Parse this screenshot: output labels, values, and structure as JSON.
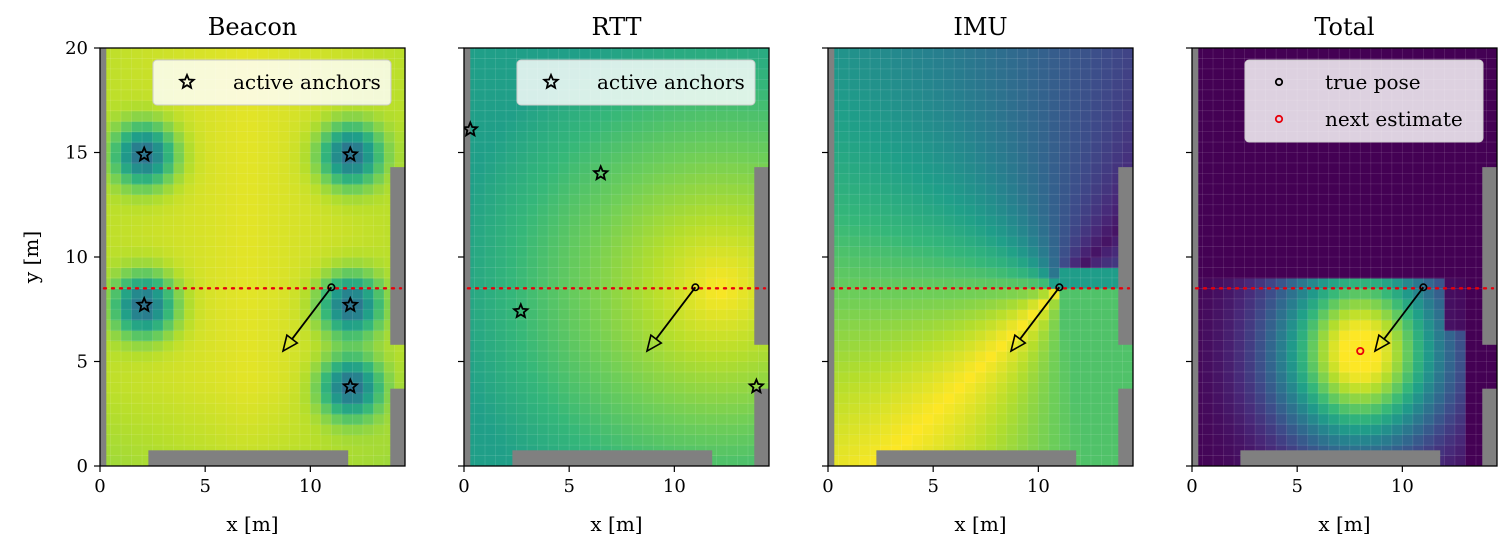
{
  "chart_data": {
    "type": "heatmap",
    "colormap": "viridis",
    "xlim": [
      0,
      14.5
    ],
    "ylim": [
      0,
      20
    ],
    "xticks": [
      "0",
      "5",
      "10"
    ],
    "yticks": [
      "0",
      "5",
      "10",
      "15",
      "20"
    ],
    "xlabel": "x [m]",
    "ylabel": "y [m]",
    "grid": true,
    "legend_placement": "upper right",
    "true_pose": {
      "x": 11.0,
      "y": 8.55
    },
    "heading_arrow_tip": {
      "x": 8.7,
      "y": 5.5
    },
    "next_estimate": {
      "x": 8.0,
      "y": 5.5
    },
    "corridor_line_y": 8.5,
    "walls": [
      {
        "x0": 0.0,
        "x1": 0.3,
        "y0": 0.0,
        "y1": 20.0
      },
      {
        "x0": 2.3,
        "x1": 11.8,
        "y0": 0.0,
        "y1": 0.75
      },
      {
        "x0": 13.8,
        "x1": 14.5,
        "y0": 5.8,
        "y1": 14.3
      },
      {
        "x0": 13.8,
        "x1": 14.5,
        "y0": 0.0,
        "y1": 3.7
      }
    ],
    "panels": [
      {
        "title": "Beacon",
        "legend": [
          {
            "label": "active anchors",
            "marker": "star",
            "color": "#000000"
          }
        ],
        "anchors": [
          {
            "x": 2.1,
            "y": 14.9
          },
          {
            "x": 11.9,
            "y": 14.9
          },
          {
            "x": 2.1,
            "y": 7.7
          },
          {
            "x": 11.9,
            "y": 7.7
          },
          {
            "x": 11.9,
            "y": 3.8
          }
        ]
      },
      {
        "title": "RTT",
        "legend": [
          {
            "label": "active anchors",
            "marker": "star",
            "color": "#000000"
          }
        ],
        "anchors": [
          {
            "x": 0.3,
            "y": 16.1
          },
          {
            "x": 6.5,
            "y": 14.0
          },
          {
            "x": 2.7,
            "y": 7.4
          },
          {
            "x": 13.9,
            "y": 3.8
          }
        ]
      },
      {
        "title": "IMU",
        "legend": [],
        "anchors": []
      },
      {
        "title": "Total",
        "legend": [
          {
            "label": "true pose",
            "marker": "circle",
            "color": "#000000"
          },
          {
            "label": "next estimate",
            "marker": "circle",
            "color": "#e8000b"
          }
        ],
        "anchors": []
      }
    ]
  }
}
